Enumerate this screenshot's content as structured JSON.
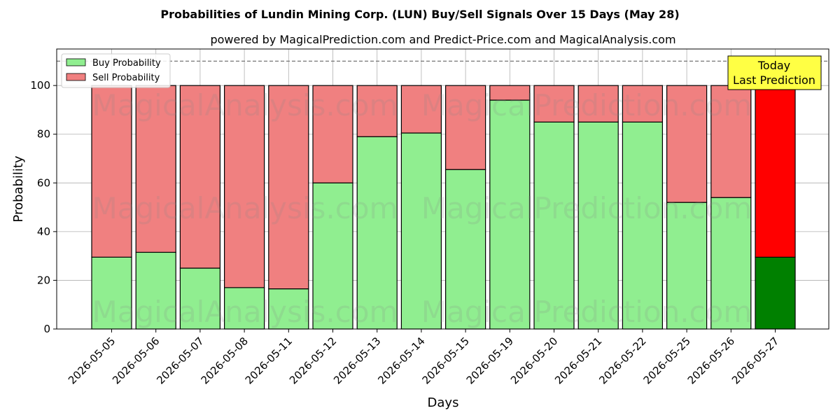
{
  "chart_data": {
    "type": "bar",
    "stacked": true,
    "title": "Probabilities of Lundin Mining Corp. (LUN) Buy/Sell Signals Over 15 Days (May 28)",
    "subtitle": "powered by MagicalPrediction.com and Predict-Price.com and MagicalAnalysis.com",
    "xlabel": "Days",
    "ylabel": "Probability",
    "ylim": [
      0,
      115
    ],
    "yticks": [
      "0",
      "20",
      "40",
      "60",
      "80",
      "100"
    ],
    "grid": true,
    "legend_position": "top-left",
    "reference_line": 110,
    "categories": [
      "2026-05-05",
      "2026-05-06",
      "2026-05-07",
      "2026-05-08",
      "2026-05-11",
      "2026-05-12",
      "2026-05-13",
      "2026-05-14",
      "2026-05-15",
      "2026-05-19",
      "2026-05-20",
      "2026-05-21",
      "2026-05-22",
      "2026-05-25",
      "2026-05-26",
      "2026-05-27"
    ],
    "series": [
      {
        "name": "Buy Probability",
        "color": "#90ee90",
        "values": [
          29.5,
          31.5,
          25,
          17,
          16.5,
          60,
          79,
          80.5,
          65.5,
          94,
          85,
          85,
          85,
          52,
          54,
          29.5
        ]
      },
      {
        "name": "Sell Probability",
        "color": "#f08080",
        "values": [
          70.5,
          68.5,
          75,
          83,
          83.5,
          40,
          21,
          19.5,
          34.5,
          6,
          15,
          15,
          15,
          48,
          46,
          70.5
        ]
      }
    ],
    "highlight": {
      "index": 15,
      "buy_color": "#008000",
      "sell_color": "#ff0000"
    },
    "annotation": {
      "line1": "Today",
      "line2": "Last Prediction",
      "bg_color": "#ffff44"
    },
    "watermarks": [
      "MagicalAnalysis.com",
      "MagicalPrediction.com"
    ]
  }
}
